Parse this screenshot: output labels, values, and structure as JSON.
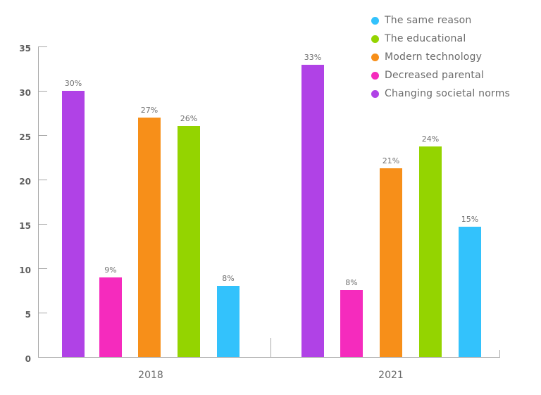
{
  "chart_data": {
    "type": "bar",
    "title": "",
    "xlabel": "",
    "ylabel": "",
    "ylim": [
      0,
      35
    ],
    "yticks": [
      0,
      5,
      10,
      15,
      20,
      25,
      30,
      35
    ],
    "grid": false,
    "legend_position": "top-right",
    "categories": [
      "2018",
      "2021"
    ],
    "series": [
      {
        "name": "Changing societal norms",
        "color": "#b042e6",
        "values": [
          30,
          33
        ],
        "labels": [
          "30%",
          "33%"
        ],
        "drawn": [
          30,
          32.9
        ]
      },
      {
        "name": "Decreased parental",
        "color": "#f52bbd",
        "values": [
          9,
          8
        ],
        "labels": [
          "9%",
          "8%"
        ],
        "drawn": [
          9,
          7.5
        ]
      },
      {
        "name": "Modern technology",
        "color": "#f78f19",
        "values": [
          27,
          21
        ],
        "labels": [
          "27%",
          "21%"
        ],
        "drawn": [
          27,
          21.3
        ]
      },
      {
        "name": "The educational",
        "color": "#94d400",
        "values": [
          26,
          24
        ],
        "labels": [
          "26%",
          "24%"
        ],
        "drawn": [
          26,
          23.7
        ]
      },
      {
        "name": "The same reason",
        "color": "#33c2fc",
        "values": [
          8,
          15
        ],
        "labels": [
          "8%",
          "15%"
        ],
        "drawn": [
          8,
          14.7
        ]
      }
    ]
  },
  "legend": [
    {
      "label": "The same reason",
      "color": "#33c2fc"
    },
    {
      "label": "The educational",
      "color": "#94d400"
    },
    {
      "label": "Modern technology",
      "color": "#f78f19"
    },
    {
      "label": "Decreased parental",
      "color": "#f52bbd"
    },
    {
      "label": "Changing societal norms",
      "color": "#b042e6"
    }
  ],
  "axis": {
    "y_labels": [
      "0",
      "5",
      "10",
      "15",
      "20",
      "25",
      "30",
      "35"
    ],
    "x_labels": [
      "2018",
      "2021"
    ]
  }
}
